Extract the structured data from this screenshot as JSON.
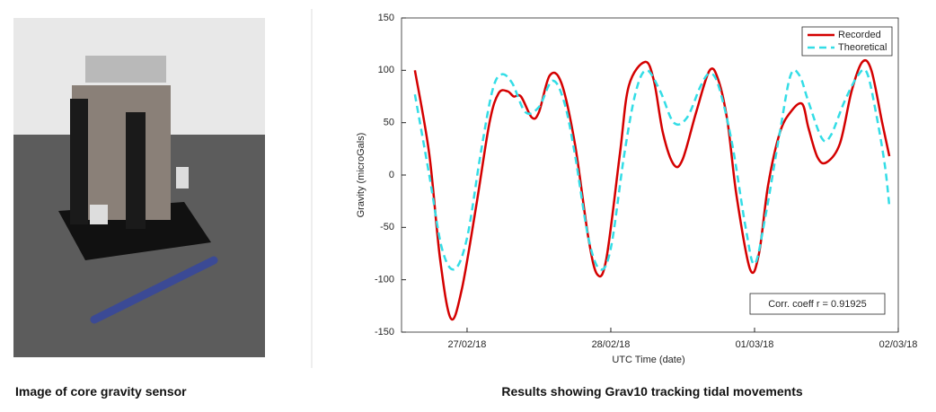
{
  "image_caption": "Image of core gravity sensor",
  "chart_caption": "Results showing Grav10 tracking tidal movements",
  "chart_data": {
    "type": "line",
    "xlabel": "UTC Time (date)",
    "ylabel": "Gravity (microGals)",
    "annotation": "Corr. coeff r = 0.91925",
    "xlim": [
      -0.456,
      3
    ],
    "ylim": [
      -150,
      150
    ],
    "xticks": [
      {
        "value": 0,
        "label": "27/02/18"
      },
      {
        "value": 1,
        "label": "28/02/18"
      },
      {
        "value": 2,
        "label": "01/03/18"
      },
      {
        "value": 3,
        "label": "02/03/18"
      }
    ],
    "yticks": [
      -150,
      -100,
      -50,
      0,
      50,
      100,
      150
    ],
    "legend": "upper right",
    "series": [
      {
        "name": "Recorded",
        "color": "#d40000",
        "dash": false,
        "x": [
          -0.363,
          -0.263,
          -0.188,
          -0.113,
          -0.038,
          0.063,
          0.156,
          0.219,
          0.281,
          0.325,
          0.375,
          0.45,
          0.5,
          0.575,
          0.656,
          0.75,
          0.844,
          0.906,
          0.969,
          1.063,
          1.125,
          1.238,
          1.3,
          1.363,
          1.438,
          1.5,
          1.594,
          1.688,
          1.75,
          1.813,
          1.875,
          1.969,
          2.031,
          2.094,
          2.175,
          2.25,
          2.331,
          2.375,
          2.438,
          2.5,
          2.594,
          2.675,
          2.75,
          2.813,
          2.888,
          2.938
        ],
        "values": [
          100,
          20,
          -80,
          -137,
          -110,
          -30,
          50,
          78,
          80,
          75,
          75,
          55,
          60,
          95,
          88,
          30,
          -60,
          -95,
          -80,
          20,
          85,
          108,
          90,
          40,
          10,
          15,
          60,
          100,
          90,
          50,
          -20,
          -90,
          -75,
          -10,
          40,
          60,
          68,
          45,
          17,
          12,
          30,
          80,
          108,
          100,
          50,
          18
        ]
      },
      {
        "name": "Theoretical",
        "color": "#33dde6",
        "dash": true,
        "x": [
          -0.363,
          -0.263,
          -0.175,
          -0.088,
          0,
          0.094,
          0.175,
          0.238,
          0.313,
          0.406,
          0.5,
          0.594,
          0.675,
          0.75,
          0.844,
          0.925,
          1,
          1.094,
          1.175,
          1.25,
          1.344,
          1.438,
          1.531,
          1.625,
          1.688,
          1.75,
          1.844,
          1.938,
          2,
          2.075,
          2.175,
          2.25,
          2.313,
          2.375,
          2.469,
          2.531,
          2.625,
          2.719,
          2.781,
          2.844,
          2.906,
          2.938
        ],
        "values": [
          77,
          0,
          -70,
          -90,
          -60,
          20,
          80,
          96,
          88,
          60,
          65,
          90,
          70,
          20,
          -60,
          -90,
          -70,
          20,
          80,
          100,
          80,
          50,
          55,
          85,
          97,
          85,
          30,
          -50,
          -85,
          -40,
          40,
          95,
          95,
          70,
          35,
          38,
          70,
          95,
          98,
          60,
          10,
          -30
        ]
      }
    ]
  }
}
